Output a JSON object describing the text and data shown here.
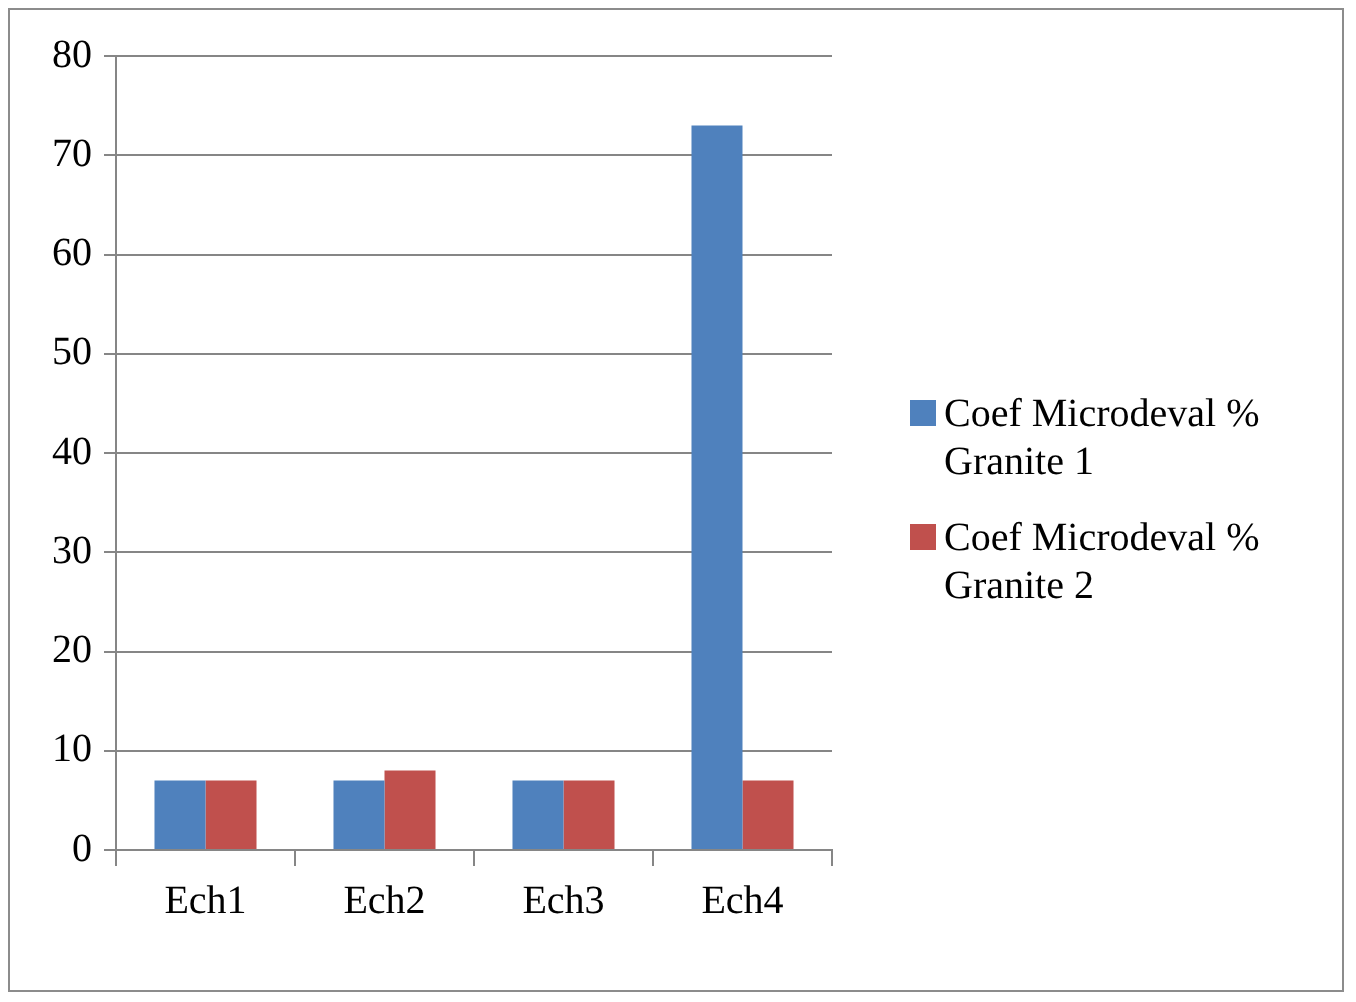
{
  "chart_data": {
    "type": "bar",
    "categories": [
      "Ech1",
      "Ech2",
      "Ech3",
      "Ech4"
    ],
    "series": [
      {
        "name": "Coef Microdeval % Granite 1",
        "color": "#4f81bd",
        "values": [
          7,
          7,
          7,
          73
        ]
      },
      {
        "name": "Coef Microdeval % Granite 2",
        "color": "#c0504d",
        "values": [
          7,
          8,
          7,
          7
        ]
      }
    ],
    "ylim": [
      0,
      80
    ],
    "yticks": [
      0,
      10,
      20,
      30,
      40,
      50,
      60,
      70,
      80
    ],
    "grid": "y",
    "legend": "right"
  }
}
